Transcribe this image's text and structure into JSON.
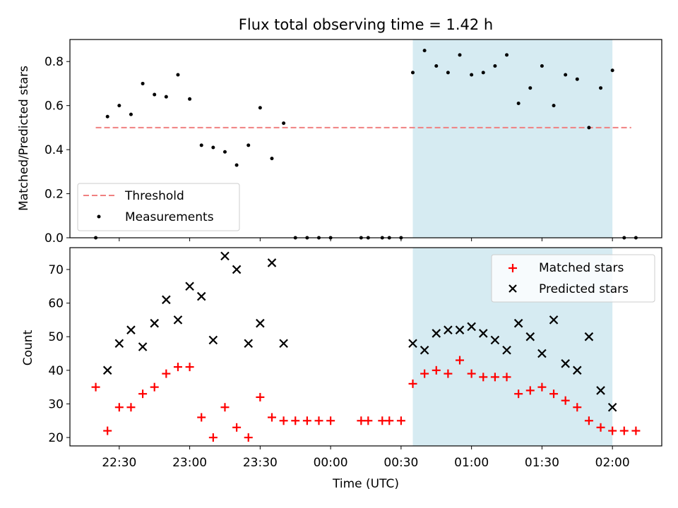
{
  "figure": {
    "title": "Flux total observing time = 1.42 h",
    "highlight_color": "#add8e6",
    "highlight_start": "00:35",
    "highlight_end": "02:00"
  },
  "chart_data": [
    {
      "type": "scatter",
      "panel": "top",
      "title": "Flux total observing time = 1.42 h",
      "ylabel": "Matched/Predicted stars",
      "xlim": [
        "22:09",
        "02:21"
      ],
      "ylim": [
        0,
        0.9
      ],
      "yticks": [
        0.0,
        0.2,
        0.4,
        0.6,
        0.8
      ],
      "ytick_labels": [
        "0.0",
        "0.2",
        "0.4",
        "0.6",
        "0.8"
      ],
      "legend_position": "lower-left",
      "threshold": {
        "name": "Threshold",
        "y": 0.5,
        "x_start": "22:20",
        "x_end": "02:08",
        "color": "#f08080",
        "style": "dashed"
      },
      "series": [
        {
          "name": "Measurements",
          "color": "#000000",
          "marker": "dot",
          "points": [
            [
              "22:20",
              0.0
            ],
            [
              "22:25",
              0.55
            ],
            [
              "22:30",
              0.6
            ],
            [
              "22:35",
              0.56
            ],
            [
              "22:40",
              0.7
            ],
            [
              "22:45",
              0.65
            ],
            [
              "22:50",
              0.64
            ],
            [
              "22:55",
              0.74
            ],
            [
              "23:00",
              0.63
            ],
            [
              "23:05",
              0.42
            ],
            [
              "23:10",
              0.41
            ],
            [
              "23:15",
              0.39
            ],
            [
              "23:20",
              0.33
            ],
            [
              "23:25",
              0.42
            ],
            [
              "23:30",
              0.59
            ],
            [
              "23:35",
              0.36
            ],
            [
              "23:40",
              0.52
            ],
            [
              "23:45",
              0.0
            ],
            [
              "23:50",
              0.0
            ],
            [
              "23:55",
              0.0
            ],
            [
              "00:00",
              0.0
            ],
            [
              "00:13",
              0.0
            ],
            [
              "00:16",
              0.0
            ],
            [
              "00:22",
              0.0
            ],
            [
              "00:25",
              0.0
            ],
            [
              "00:30",
              0.0
            ],
            [
              "00:35",
              0.75
            ],
            [
              "00:40",
              0.85
            ],
            [
              "00:45",
              0.78
            ],
            [
              "00:50",
              0.75
            ],
            [
              "00:55",
              0.83
            ],
            [
              "01:00",
              0.74
            ],
            [
              "01:05",
              0.75
            ],
            [
              "01:10",
              0.78
            ],
            [
              "01:15",
              0.83
            ],
            [
              "01:20",
              0.61
            ],
            [
              "01:25",
              0.68
            ],
            [
              "01:30",
              0.78
            ],
            [
              "01:35",
              0.6
            ],
            [
              "01:40",
              0.74
            ],
            [
              "01:45",
              0.72
            ],
            [
              "01:50",
              0.5
            ],
            [
              "01:55",
              0.68
            ],
            [
              "02:00",
              0.76
            ],
            [
              "02:05",
              0.0
            ],
            [
              "02:10",
              0.0
            ]
          ]
        }
      ]
    },
    {
      "type": "scatter",
      "panel": "bottom",
      "ylabel": "Count",
      "xlabel": "Time (UTC)",
      "xlim": [
        "22:09",
        "02:21"
      ],
      "ylim": [
        17.5,
        76.5
      ],
      "yticks": [
        20,
        30,
        40,
        50,
        60,
        70
      ],
      "xticks": [
        "22:30",
        "23:00",
        "23:30",
        "00:00",
        "00:30",
        "01:00",
        "01:30",
        "02:00"
      ],
      "legend_position": "upper-right",
      "series": [
        {
          "name": "Matched stars",
          "color": "#ff0000",
          "marker": "plus",
          "points": [
            [
              "22:20",
              35
            ],
            [
              "22:25",
              22
            ],
            [
              "22:30",
              29
            ],
            [
              "22:35",
              29
            ],
            [
              "22:40",
              33
            ],
            [
              "22:45",
              35
            ],
            [
              "22:50",
              39
            ],
            [
              "22:55",
              41
            ],
            [
              "23:00",
              41
            ],
            [
              "23:05",
              26
            ],
            [
              "23:10",
              20
            ],
            [
              "23:15",
              29
            ],
            [
              "23:20",
              23
            ],
            [
              "23:25",
              20
            ],
            [
              "23:30",
              32
            ],
            [
              "23:35",
              26
            ],
            [
              "23:40",
              25
            ],
            [
              "23:45",
              25
            ],
            [
              "23:50",
              25
            ],
            [
              "23:55",
              25
            ],
            [
              "00:00",
              25
            ],
            [
              "00:13",
              25
            ],
            [
              "00:16",
              25
            ],
            [
              "00:22",
              25
            ],
            [
              "00:25",
              25
            ],
            [
              "00:30",
              25
            ],
            [
              "00:35",
              36
            ],
            [
              "00:40",
              39
            ],
            [
              "00:45",
              40
            ],
            [
              "00:50",
              39
            ],
            [
              "00:55",
              43
            ],
            [
              "01:00",
              39
            ],
            [
              "01:05",
              38
            ],
            [
              "01:10",
              38
            ],
            [
              "01:15",
              38
            ],
            [
              "01:20",
              33
            ],
            [
              "01:25",
              34
            ],
            [
              "01:30",
              35
            ],
            [
              "01:35",
              33
            ],
            [
              "01:40",
              31
            ],
            [
              "01:45",
              29
            ],
            [
              "01:50",
              25
            ],
            [
              "01:55",
              23
            ],
            [
              "02:00",
              22
            ],
            [
              "02:05",
              22
            ],
            [
              "02:10",
              22
            ]
          ]
        },
        {
          "name": "Predicted stars",
          "color": "#000000",
          "marker": "x",
          "points": [
            [
              "22:25",
              40
            ],
            [
              "22:30",
              48
            ],
            [
              "22:35",
              52
            ],
            [
              "22:40",
              47
            ],
            [
              "22:45",
              54
            ],
            [
              "22:50",
              61
            ],
            [
              "22:55",
              55
            ],
            [
              "23:00",
              65
            ],
            [
              "23:05",
              62
            ],
            [
              "23:10",
              49
            ],
            [
              "23:15",
              74
            ],
            [
              "23:20",
              70
            ],
            [
              "23:25",
              48
            ],
            [
              "23:30",
              54
            ],
            [
              "23:35",
              72
            ],
            [
              "23:40",
              48
            ],
            [
              "00:35",
              48
            ],
            [
              "00:40",
              46
            ],
            [
              "00:45",
              51
            ],
            [
              "00:50",
              52
            ],
            [
              "00:55",
              52
            ],
            [
              "01:00",
              53
            ],
            [
              "01:05",
              51
            ],
            [
              "01:10",
              49
            ],
            [
              "01:15",
              46
            ],
            [
              "01:20",
              54
            ],
            [
              "01:25",
              50
            ],
            [
              "01:30",
              45
            ],
            [
              "01:35",
              55
            ],
            [
              "01:40",
              42
            ],
            [
              "01:45",
              40
            ],
            [
              "01:50",
              50
            ],
            [
              "01:55",
              34
            ],
            [
              "02:00",
              29
            ]
          ]
        }
      ]
    }
  ]
}
